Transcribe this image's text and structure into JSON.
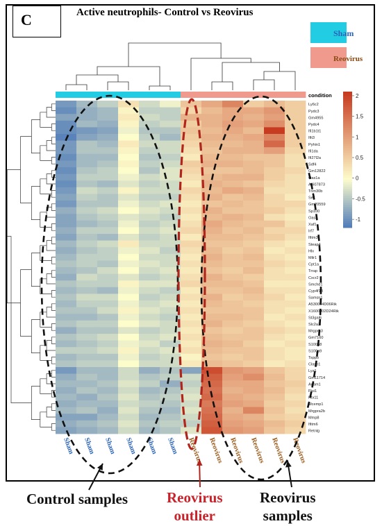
{
  "panel_letter": "C",
  "title": "Active neutrophils- Control vs Reovirus",
  "legend": {
    "items": [
      {
        "label": "Sham",
        "color": "#22cde3"
      },
      {
        "label": "Reovirus",
        "color": "#f09a8e"
      }
    ],
    "condition_label": "condition",
    "colorbar_ticks": [
      "2",
      "1.5",
      "1",
      "0.5",
      "0",
      "-0.5",
      "-1"
    ]
  },
  "captions": {
    "control": "Control samples",
    "outlier_line1": "Reovirus",
    "outlier_line2": "outlier",
    "samples_line1": "Reovirus",
    "samples_line2": "samples"
  },
  "chart_data": {
    "type": "heatmap",
    "title": "Active neutrophils- Control vs Reovirus",
    "columns": [
      "Sham",
      "Sham",
      "Sham",
      "Sham",
      "Sham",
      "Sham",
      "Reovirus",
      "Reovirus",
      "Reovirus",
      "Reovirus",
      "Reovirus",
      "Reovirus"
    ],
    "column_condition": [
      "Sham",
      "Sham",
      "Sham",
      "Sham",
      "Sham",
      "Sham",
      "Reovirus",
      "Reovirus",
      "Reovirus",
      "Reovirus",
      "Reovirus",
      "Reovirus"
    ],
    "rows": [
      "Ly6c2",
      "Pydc3",
      "Gm4955",
      "Pydc4",
      "Ifi1b1t1",
      "Ifit3",
      "Pyhin1",
      "Ifi1da",
      "Ifi27l2a",
      "Sdf4",
      "Gm12822",
      "Oas1a",
      "AI607873",
      "Trim30b",
      "Sell",
      "Gm20559",
      "Sp100",
      "Oas3",
      "Xaf1",
      "Irf7",
      "Ifitm3",
      "Steap4",
      "Hlx",
      "Milr1",
      "Cpt1a",
      "Trrap",
      "Cxcr2",
      "Smchd1",
      "Cyp4f18",
      "Samsn1",
      "A530064D06Rik",
      "X1600002D24Rik",
      "St3gal6",
      "Slc2a3",
      "Mrgpra3",
      "Gm7160",
      "S100a8",
      "S100a9",
      "Tsppo",
      "Clasp1",
      "Lyz1",
      "Gm11714",
      "Adam1",
      "Pisi1",
      "Rtx11",
      "Mcemp1",
      "Mrgpra2b",
      "Mmp8",
      "Ifitm6",
      "Retnlg"
    ],
    "color_scale": {
      "min": -1.2,
      "max": 2.1,
      "low": "#4a78b8",
      "mid": "#fdfccb",
      "high": "#c73b20"
    },
    "colorbar_ticks": [
      2,
      1.5,
      1,
      0.5,
      0,
      -0.5,
      -1
    ],
    "values": [
      [
        -0.9,
        -0.6,
        -0.4,
        0.3,
        -0.3,
        -0.1,
        0.6,
        0.9,
        1.3,
        0.5,
        0.7,
        0.5
      ],
      [
        -1.0,
        -0.7,
        -0.6,
        0.1,
        -0.4,
        -0.4,
        0.4,
        0.7,
        0.9,
        0.9,
        1.1,
        0.5
      ],
      [
        -0.8,
        -0.7,
        -0.6,
        0.2,
        -0.3,
        -0.4,
        0.8,
        0.8,
        0.9,
        0.8,
        1.0,
        0.5
      ],
      [
        -1.0,
        -0.6,
        -0.7,
        0.1,
        -0.4,
        -0.3,
        0.5,
        0.8,
        1.0,
        0.9,
        1.2,
        0.5
      ],
      [
        -1.0,
        -0.9,
        -0.8,
        -0.1,
        -0.5,
        -0.5,
        0.6,
        0.7,
        0.9,
        0.7,
        2.1,
        0.5
      ],
      [
        -1.1,
        -0.8,
        -0.7,
        0.0,
        -0.4,
        -0.6,
        0.5,
        0.8,
        0.8,
        0.9,
        1.3,
        0.5
      ],
      [
        -0.9,
        -0.5,
        -0.6,
        0.2,
        -0.3,
        -0.3,
        0.4,
        0.7,
        0.7,
        0.8,
        1.6,
        0.5
      ],
      [
        -0.9,
        -0.5,
        -0.5,
        0.1,
        -0.4,
        -0.3,
        0.3,
        0.6,
        0.8,
        0.8,
        1.0,
        0.4
      ],
      [
        -1.0,
        -0.6,
        -0.6,
        0.0,
        -0.5,
        -0.4,
        0.2,
        0.7,
        0.7,
        0.6,
        0.6,
        0.3
      ],
      [
        -0.9,
        -0.6,
        -0.5,
        0.1,
        -0.4,
        -0.3,
        0.5,
        0.8,
        0.8,
        0.7,
        0.6,
        0.3
      ],
      [
        -1.0,
        -0.5,
        -0.4,
        0.0,
        -0.5,
        -0.2,
        0.4,
        0.6,
        0.6,
        0.7,
        0.5,
        0.4
      ],
      [
        -0.9,
        -0.4,
        -0.4,
        -0.1,
        -0.3,
        -0.2,
        0.3,
        0.7,
        0.8,
        0.8,
        0.5,
        0.3
      ],
      [
        -1.0,
        -0.5,
        -0.6,
        -0.2,
        -0.4,
        -0.3,
        0.2,
        0.8,
        0.7,
        0.6,
        0.4,
        0.3
      ],
      [
        -0.9,
        -0.3,
        -0.4,
        0.1,
        -0.3,
        -0.3,
        0.4,
        0.7,
        0.9,
        0.8,
        0.3,
        0.3
      ],
      [
        -0.8,
        -0.4,
        -0.5,
        -0.2,
        -0.4,
        -0.4,
        0.3,
        0.8,
        0.6,
        0.7,
        0.4,
        0.2
      ],
      [
        -0.9,
        -0.5,
        -0.5,
        -0.1,
        -0.3,
        -0.2,
        0.2,
        0.6,
        0.7,
        0.6,
        0.4,
        0.4
      ],
      [
        -0.7,
        -0.4,
        -0.3,
        0.0,
        -0.2,
        -0.3,
        0.3,
        0.8,
        0.6,
        0.6,
        0.5,
        0.3
      ],
      [
        -0.8,
        -0.5,
        -0.4,
        -0.2,
        -0.3,
        -0.4,
        0.2,
        0.7,
        0.8,
        0.7,
        0.3,
        0.2
      ],
      [
        -0.8,
        -0.6,
        -0.5,
        -0.1,
        -0.4,
        -0.3,
        0.3,
        0.9,
        0.7,
        0.6,
        0.6,
        0.3
      ],
      [
        -0.7,
        -0.4,
        -0.4,
        0.0,
        -0.3,
        -0.2,
        0.4,
        0.8,
        0.6,
        0.7,
        0.4,
        0.4
      ],
      [
        -0.8,
        -0.5,
        -0.6,
        -0.2,
        -0.4,
        -0.3,
        0.2,
        0.7,
        0.7,
        0.6,
        0.5,
        0.3
      ],
      [
        -0.6,
        -0.4,
        -0.3,
        0.2,
        -0.3,
        -0.3,
        0.4,
        0.6,
        0.6,
        0.5,
        0.3,
        0.2
      ],
      [
        -0.7,
        -0.5,
        -0.4,
        -0.1,
        -0.2,
        -0.4,
        0.3,
        0.7,
        0.5,
        0.6,
        0.2,
        0.3
      ],
      [
        -0.6,
        -0.4,
        -0.4,
        0.0,
        -0.3,
        -0.3,
        0.2,
        0.8,
        0.6,
        0.7,
        0.3,
        0.2
      ],
      [
        -0.5,
        -0.4,
        -0.5,
        -0.1,
        -0.2,
        -0.3,
        0.3,
        0.7,
        0.6,
        0.6,
        0.4,
        0.3
      ],
      [
        -0.6,
        -0.5,
        -0.3,
        0.0,
        -0.3,
        -0.2,
        0.2,
        0.6,
        0.5,
        0.7,
        0.3,
        0.2
      ],
      [
        -0.7,
        -0.3,
        -0.4,
        -0.2,
        -0.4,
        -0.3,
        0.3,
        0.8,
        0.6,
        0.5,
        0.3,
        0.3
      ],
      [
        -0.5,
        -0.4,
        -0.4,
        0.1,
        -0.2,
        -0.2,
        0.4,
        0.7,
        0.7,
        0.6,
        0.2,
        0.2
      ],
      [
        -0.6,
        -0.5,
        -0.6,
        -0.1,
        -0.3,
        -0.4,
        0.2,
        0.6,
        0.6,
        0.7,
        0.3,
        0.3
      ],
      [
        -0.5,
        -0.3,
        -0.3,
        0.0,
        -0.4,
        -0.3,
        0.3,
        0.8,
        0.5,
        0.6,
        0.4,
        0.2
      ],
      [
        -0.6,
        -0.4,
        -0.4,
        -0.1,
        -0.3,
        -0.2,
        0.2,
        0.7,
        0.6,
        0.5,
        0.3,
        0.3
      ],
      [
        -0.5,
        -0.5,
        -0.3,
        0.1,
        -0.2,
        -0.3,
        0.3,
        0.6,
        0.6,
        0.6,
        0.3,
        0.2
      ],
      [
        -0.6,
        -0.6,
        -0.5,
        -0.1,
        -0.3,
        -0.4,
        0.2,
        0.7,
        0.7,
        0.6,
        0.2,
        0.3
      ],
      [
        -0.5,
        -0.4,
        -0.4,
        0.0,
        -0.2,
        -0.3,
        0.3,
        0.8,
        0.6,
        0.5,
        0.3,
        0.2
      ],
      [
        -0.7,
        -0.5,
        -0.5,
        -0.2,
        -0.4,
        -0.3,
        0.2,
        0.6,
        0.5,
        0.6,
        0.4,
        0.3
      ],
      [
        -0.5,
        -0.4,
        -0.3,
        0.0,
        -0.3,
        -0.2,
        0.3,
        0.7,
        0.6,
        0.6,
        0.3,
        0.2
      ],
      [
        -0.6,
        -0.5,
        -0.4,
        -0.1,
        -0.2,
        -0.4,
        0.2,
        0.8,
        0.7,
        0.5,
        0.2,
        0.3
      ],
      [
        -0.4,
        -0.4,
        -0.3,
        0.1,
        -0.3,
        -0.2,
        0.3,
        0.7,
        0.6,
        0.6,
        0.3,
        0.2
      ],
      [
        -0.6,
        -0.5,
        -0.5,
        -0.1,
        -0.4,
        -0.3,
        0.1,
        0.6,
        0.5,
        0.6,
        0.3,
        0.2
      ],
      [
        -0.5,
        -0.4,
        -0.4,
        0.0,
        -0.3,
        -0.3,
        0.2,
        0.7,
        0.6,
        0.5,
        0.2,
        0.3
      ],
      [
        -0.9,
        -0.6,
        -0.6,
        -0.3,
        -0.7,
        -0.5,
        -0.8,
        1.9,
        1.1,
        1.0,
        0.6,
        0.4
      ],
      [
        -0.7,
        -0.5,
        -0.6,
        -0.3,
        -0.5,
        -0.4,
        -0.3,
        1.7,
        1.0,
        1.2,
        0.7,
        0.4
      ],
      [
        -0.6,
        -0.6,
        -0.5,
        -0.2,
        -0.4,
        -0.7,
        -0.4,
        1.6,
        0.9,
        0.9,
        0.6,
        0.5
      ],
      [
        -0.7,
        -0.5,
        -0.6,
        -0.3,
        -0.6,
        -0.5,
        -0.3,
        1.5,
        0.8,
        0.9,
        0.7,
        0.4
      ],
      [
        -0.6,
        -0.7,
        -0.5,
        -0.2,
        -0.5,
        -0.4,
        -0.2,
        1.6,
        0.9,
        0.8,
        0.6,
        0.3
      ],
      [
        -0.7,
        -0.6,
        -0.6,
        -0.3,
        -0.4,
        -0.5,
        -0.3,
        1.4,
        1.0,
        0.9,
        0.5,
        0.4
      ],
      [
        -0.6,
        -0.5,
        -0.7,
        -0.2,
        -0.5,
        -0.6,
        -0.2,
        1.5,
        0.8,
        1.3,
        0.6,
        0.3
      ],
      [
        -0.8,
        -0.8,
        -0.6,
        -0.3,
        -0.6,
        -0.5,
        -0.3,
        1.6,
        0.9,
        0.8,
        0.5,
        0.4
      ],
      [
        -0.7,
        -0.6,
        -0.5,
        -0.2,
        -0.5,
        -0.4,
        -0.4,
        1.7,
        1.0,
        0.9,
        0.7,
        0.5
      ],
      [
        -0.8,
        -0.7,
        -0.6,
        -0.3,
        -0.6,
        -0.5,
        -0.2,
        1.8,
        1.1,
        1.0,
        0.6,
        0.4
      ]
    ]
  }
}
